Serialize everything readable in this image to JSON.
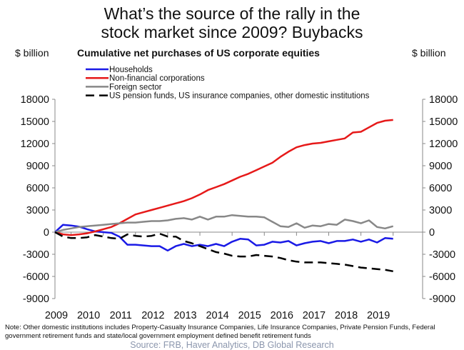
{
  "header": {
    "title_line1": "What’s the source of the rally in the",
    "title_line2": "stock market since 2009? Buybacks",
    "left_unit": "$ billion",
    "right_unit": "$ billion",
    "subtitle": "Cumulative net purchases of US corporate equities"
  },
  "footer": {
    "note": "Note: Other domestic institutions includes Property-Casualty Insurance Companies, Life Insurance Companies, Private Pension Funds, Federal government retirement funds and state/local government employment defined benefit retirement funds",
    "source": "Source: FRB, Haver Analytics, DB Global Research"
  },
  "chart_data": {
    "type": "line",
    "title": "Cumulative net purchases of US corporate equities",
    "ylabel": "$ billion",
    "ylabel_right": "$ billion",
    "xlabel": "",
    "ylim": [
      -9000,
      18000
    ],
    "yticks": [
      18000,
      15000,
      12000,
      9000,
      6000,
      3000,
      0,
      -3000,
      -6000,
      -9000
    ],
    "xlim": [
      2009,
      2019.75
    ],
    "xticks": [
      "2009",
      "2010",
      "2011",
      "2012",
      "2013",
      "2014",
      "2015",
      "2016",
      "2017",
      "2018",
      "2019"
    ],
    "grid": false,
    "legend_position": "top-left",
    "series": [
      {
        "name": "Households",
        "color": "#1a1ae6",
        "dash": "solid",
        "x": [
          2009.0,
          2009.25,
          2009.5,
          2009.75,
          2010.0,
          2010.25,
          2010.5,
          2010.75,
          2011.0,
          2011.25,
          2011.5,
          2011.75,
          2012.0,
          2012.25,
          2012.5,
          2012.75,
          2013.0,
          2013.25,
          2013.5,
          2013.75,
          2014.0,
          2014.25,
          2014.5,
          2014.75,
          2015.0,
          2015.25,
          2015.5,
          2015.75,
          2016.0,
          2016.25,
          2016.5,
          2016.75,
          2017.0,
          2017.25,
          2017.5,
          2017.75,
          2018.0,
          2018.25,
          2018.5,
          2018.75,
          2019.0,
          2019.25,
          2019.5
        ],
        "values": [
          0,
          1000,
          900,
          750,
          400,
          100,
          0,
          -100,
          -600,
          -1700,
          -1700,
          -1800,
          -1900,
          -1900,
          -2500,
          -1900,
          -1600,
          -1900,
          -1700,
          -1900,
          -1600,
          -1900,
          -1300,
          -900,
          -1000,
          -1800,
          -1700,
          -1300,
          -1400,
          -1200,
          -1800,
          -1500,
          -1300,
          -1200,
          -1500,
          -1200,
          -1200,
          -1000,
          -1300,
          -1000,
          -1400,
          -800,
          -900
        ]
      },
      {
        "name": "Non-financial corporations",
        "color": "#e61919",
        "dash": "solid",
        "x": [
          2009.0,
          2009.25,
          2009.5,
          2009.75,
          2010.0,
          2010.25,
          2010.5,
          2010.75,
          2011.0,
          2011.25,
          2011.5,
          2011.75,
          2012.0,
          2012.25,
          2012.5,
          2012.75,
          2013.0,
          2013.25,
          2013.5,
          2013.75,
          2014.0,
          2014.25,
          2014.5,
          2014.75,
          2015.0,
          2015.25,
          2015.5,
          2015.75,
          2016.0,
          2016.25,
          2016.5,
          2016.75,
          2017.0,
          2017.25,
          2017.5,
          2017.75,
          2018.0,
          2018.25,
          2018.5,
          2018.75,
          2019.0,
          2019.25,
          2019.5
        ],
        "values": [
          0,
          -300,
          -400,
          -300,
          -150,
          100,
          400,
          700,
          1200,
          1800,
          2400,
          2700,
          3000,
          3300,
          3600,
          3900,
          4200,
          4600,
          5100,
          5700,
          6100,
          6500,
          7000,
          7500,
          7900,
          8400,
          8900,
          9400,
          10200,
          10900,
          11500,
          11800,
          12000,
          12100,
          12300,
          12500,
          12700,
          13500,
          13600,
          14200,
          14800,
          15100,
          15200
        ]
      },
      {
        "name": "Foreign sector",
        "color": "#888888",
        "dash": "solid",
        "x": [
          2009.0,
          2009.25,
          2009.5,
          2009.75,
          2010.0,
          2010.25,
          2010.5,
          2010.75,
          2011.0,
          2011.25,
          2011.5,
          2011.75,
          2012.0,
          2012.25,
          2012.5,
          2012.75,
          2013.0,
          2013.25,
          2013.5,
          2013.75,
          2014.0,
          2014.25,
          2014.5,
          2014.75,
          2015.0,
          2015.25,
          2015.5,
          2015.75,
          2016.0,
          2016.25,
          2016.5,
          2016.75,
          2017.0,
          2017.25,
          2017.5,
          2017.75,
          2018.0,
          2018.25,
          2018.5,
          2018.75,
          2019.0,
          2019.25,
          2019.5
        ],
        "values": [
          0,
          300,
          500,
          700,
          800,
          900,
          1000,
          1100,
          1200,
          1300,
          1300,
          1400,
          1500,
          1500,
          1600,
          1800,
          1900,
          1700,
          2100,
          1700,
          2100,
          2100,
          2300,
          2200,
          2100,
          2100,
          2000,
          1400,
          800,
          700,
          1200,
          600,
          900,
          800,
          1100,
          1000,
          1700,
          1500,
          1200,
          1600,
          700,
          500,
          800
        ]
      },
      {
        "name": "US pension funds, US insurance companies, other domestic institutions",
        "color": "#000000",
        "dash": "dashed",
        "x": [
          2009.0,
          2009.25,
          2009.5,
          2009.75,
          2010.0,
          2010.25,
          2010.5,
          2010.75,
          2011.0,
          2011.25,
          2011.5,
          2011.75,
          2012.0,
          2012.25,
          2012.5,
          2012.75,
          2013.0,
          2013.25,
          2013.5,
          2013.75,
          2014.0,
          2014.25,
          2014.5,
          2014.75,
          2015.0,
          2015.25,
          2015.5,
          2015.75,
          2016.0,
          2016.25,
          2016.5,
          2016.75,
          2017.0,
          2017.25,
          2017.5,
          2017.75,
          2018.0,
          2018.25,
          2018.5,
          2018.75,
          2019.0,
          2019.25,
          2019.5
        ],
        "values": [
          0,
          -600,
          -800,
          -800,
          -700,
          -400,
          -600,
          -800,
          -900,
          -300,
          -500,
          -600,
          -500,
          -200,
          -600,
          -600,
          -1200,
          -1500,
          -1900,
          -2300,
          -2700,
          -2900,
          -3200,
          -3300,
          -3300,
          -3100,
          -3200,
          -3300,
          -3500,
          -3800,
          -4000,
          -4100,
          -4100,
          -4100,
          -4200,
          -4300,
          -4400,
          -4600,
          -4800,
          -4900,
          -5000,
          -5100,
          -5300
        ]
      }
    ]
  }
}
